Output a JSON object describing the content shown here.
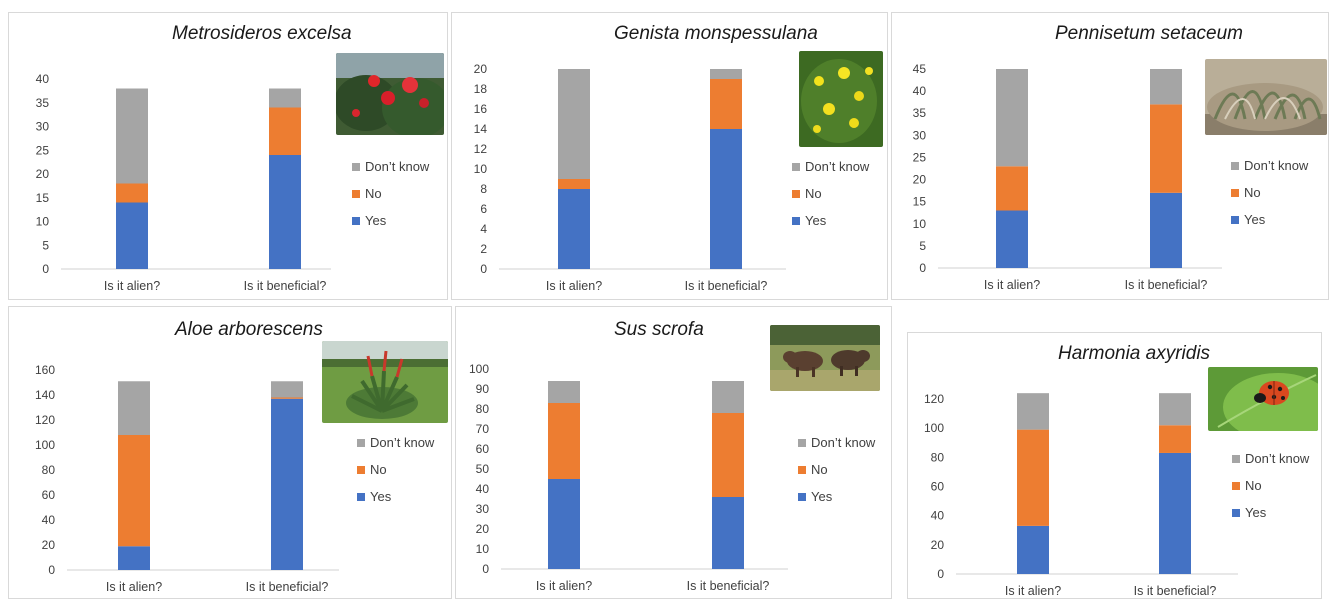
{
  "colors": {
    "yes": "#4472C4",
    "no": "#ED7D31",
    "dont_know": "#A5A5A5"
  },
  "chart_data": [
    {
      "type": "bar",
      "stacked": true,
      "title": "Metrosideros excelsa",
      "photo_icon": "red-flowers-photo-icon",
      "categories": [
        "Is it alien?",
        "Is it beneficial?"
      ],
      "series": [
        {
          "name": "Yes",
          "values": [
            14,
            24
          ]
        },
        {
          "name": "No",
          "values": [
            4,
            10
          ]
        },
        {
          "name": "Don’t know",
          "values": [
            20,
            4
          ]
        }
      ],
      "ylim": [
        0,
        40
      ],
      "yticks": [
        0,
        5,
        10,
        15,
        20,
        25,
        30,
        35,
        40
      ],
      "legend": "right"
    },
    {
      "type": "bar",
      "stacked": true,
      "title": "Genista monspessulana",
      "photo_icon": "yellow-flowers-photo-icon",
      "categories": [
        "Is it alien?",
        "Is it beneficial?"
      ],
      "series": [
        {
          "name": "Yes",
          "values": [
            8,
            14
          ]
        },
        {
          "name": "No",
          "values": [
            1,
            5
          ]
        },
        {
          "name": "Don’t know",
          "values": [
            11,
            1
          ]
        }
      ],
      "ylim": [
        0,
        20
      ],
      "yticks": [
        0,
        2,
        4,
        6,
        8,
        10,
        12,
        14,
        16,
        18,
        20
      ],
      "legend": "right"
    },
    {
      "type": "bar",
      "stacked": true,
      "title": "Pennisetum setaceum",
      "photo_icon": "grass-photo-icon",
      "categories": [
        "Is it alien?",
        "Is it beneficial?"
      ],
      "series": [
        {
          "name": "Yes",
          "values": [
            13,
            17
          ]
        },
        {
          "name": "No",
          "values": [
            10,
            20
          ]
        },
        {
          "name": "Don’t know",
          "values": [
            22,
            8
          ]
        }
      ],
      "ylim": [
        0,
        45
      ],
      "yticks": [
        0,
        5,
        10,
        15,
        20,
        25,
        30,
        35,
        40,
        45
      ],
      "legend": "right"
    },
    {
      "type": "bar",
      "stacked": true,
      "title": "Aloe arborescens",
      "photo_icon": "aloe-plant-photo-icon",
      "categories": [
        "Is it alien?",
        "Is it beneficial?"
      ],
      "series": [
        {
          "name": "Yes",
          "values": [
            19,
            137
          ]
        },
        {
          "name": "No",
          "values": [
            89,
            1
          ]
        },
        {
          "name": "Don’t know",
          "values": [
            43,
            13
          ]
        }
      ],
      "ylim": [
        0,
        160
      ],
      "yticks": [
        0,
        20,
        40,
        60,
        80,
        100,
        120,
        140,
        160
      ],
      "legend": "right"
    },
    {
      "type": "bar",
      "stacked": true,
      "title": "Sus scrofa",
      "photo_icon": "wild-boar-photo-icon",
      "categories": [
        "Is it alien?",
        "Is it beneficial?"
      ],
      "series": [
        {
          "name": "Yes",
          "values": [
            45,
            36
          ]
        },
        {
          "name": "No",
          "values": [
            38,
            42
          ]
        },
        {
          "name": "Don’t know",
          "values": [
            11,
            16
          ]
        }
      ],
      "ylim": [
        0,
        100
      ],
      "yticks": [
        0,
        10,
        20,
        30,
        40,
        50,
        60,
        70,
        80,
        90,
        100
      ],
      "legend": "right"
    },
    {
      "type": "bar",
      "stacked": true,
      "title": "Harmonia axyridis",
      "photo_icon": "ladybird-photo-icon",
      "categories": [
        "Is it alien?",
        "Is it beneficial?"
      ],
      "series": [
        {
          "name": "Yes",
          "values": [
            33,
            83
          ]
        },
        {
          "name": "No",
          "values": [
            66,
            19
          ]
        },
        {
          "name": "Don’t know",
          "values": [
            25,
            22
          ]
        }
      ],
      "ylim": [
        0,
        120
      ],
      "yticks": [
        0,
        20,
        40,
        60,
        80,
        100,
        120
      ],
      "legend": "right"
    }
  ]
}
